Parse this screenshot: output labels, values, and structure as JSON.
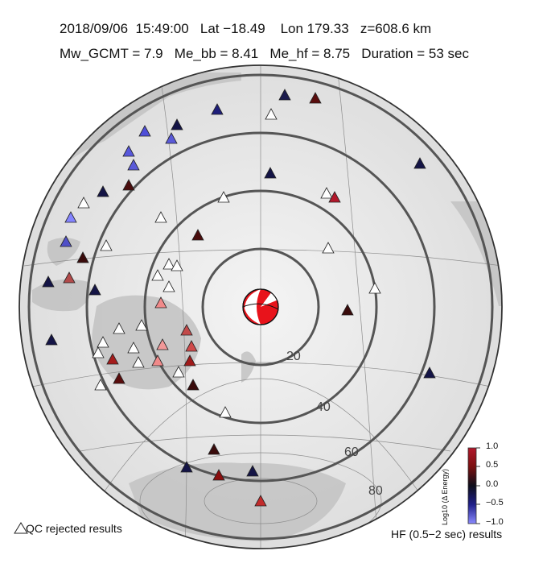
{
  "header": {
    "line1": "2018/09/06  15:49:00   Lat −18.49    Lon 179.33   z=608.6 km",
    "line2": "Mw_GCMT = 7.9   Me_bb = 8.41   Me_hf = 8.75   Duration = 53 sec"
  },
  "map": {
    "projection": "azimuthal-equidistant",
    "center": {
      "lat": -18.49,
      "lon": 179.33
    },
    "distance_rings": [
      {
        "label": "20"
      },
      {
        "label": "40"
      },
      {
        "label": "60"
      },
      {
        "label": "80"
      }
    ],
    "focal_mechanism_icon": "beachball-icon"
  },
  "legend": {
    "qc_label": "QC rejected results",
    "hf_label": "HF (0.5−2 sec) results",
    "colorbar_title": "Log10 (Δ Energy)",
    "colorbar_ticks": [
      "1.0",
      "0.5",
      "0.0",
      "−0.5",
      "−1.0"
    ],
    "colors": {
      "high": "#b2182b",
      "mid": "#0d0d1a",
      "low": "#7b7bff"
    }
  },
  "stations": [
    {
      "delta": 0.2,
      "state": "value"
    },
    {
      "delta": 0.45,
      "state": "value"
    },
    {
      "delta": -0.85,
      "state": "value"
    },
    {
      "delta": -0.6,
      "state": "value"
    },
    {
      "delta": 0.0,
      "state": "value"
    },
    {
      "delta": null,
      "state": "rejected"
    }
  ]
}
